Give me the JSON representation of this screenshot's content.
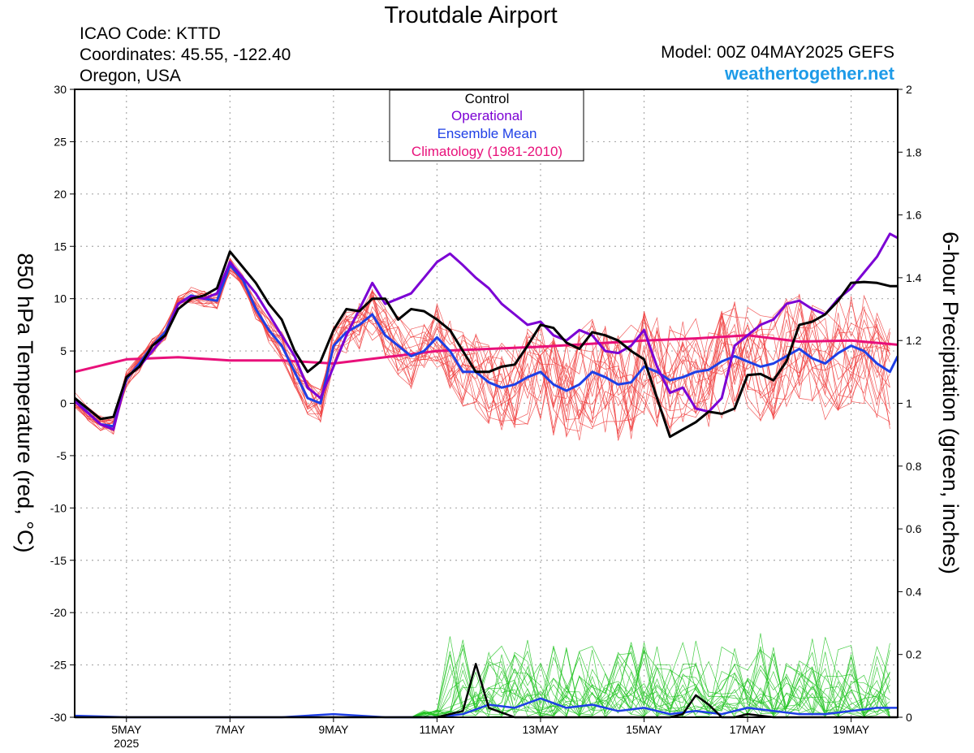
{
  "header": {
    "title": "Troutdale Airport",
    "icao": "ICAO Code: KTTD",
    "coords": "Coordinates: 45.55, -122.40",
    "region": "Oregon, USA",
    "model": "Model: 00Z 04MAY2025 GEFS",
    "site": "weathertogether.net"
  },
  "colors": {
    "control": "#000000",
    "operational": "#7B00D4",
    "mean": "#1E3FE6",
    "climatology": "#E8107A",
    "members_temp": "#F04040",
    "members_precip": "#22C422",
    "site": "#1E9BE8"
  },
  "chart_data": {
    "type": "line",
    "title": "Troutdale Airport",
    "ylabel_left": "850 hPa Temperature (red, °C)",
    "ylabel_right": "6-hour Precipitation (green, inches)",
    "ylim_left": [
      -30,
      30
    ],
    "ylim_right": [
      0,
      2
    ],
    "left_ticks": [
      "30",
      "25",
      "20",
      "15",
      "10",
      "5",
      "0",
      "-5",
      "-10",
      "-15",
      "-20",
      "-25",
      "-30"
    ],
    "right_ticks": [
      "2",
      "1.8",
      "1.6",
      "1.4",
      "1.2",
      "1",
      "0.8",
      "0.6",
      "0.4",
      "0.2",
      "0"
    ],
    "x_unit": "days since 00Z 04MAY2025",
    "xlim": [
      0,
      15.9
    ],
    "x_ticks": [
      {
        "x": 1,
        "label": "5MAY",
        "sub": "2025"
      },
      {
        "x": 3,
        "label": "7MAY",
        "sub": ""
      },
      {
        "x": 5,
        "label": "9MAY",
        "sub": ""
      },
      {
        "x": 7,
        "label": "11MAY",
        "sub": ""
      },
      {
        "x": 9,
        "label": "13MAY",
        "sub": ""
      },
      {
        "x": 11,
        "label": "15MAY",
        "sub": ""
      },
      {
        "x": 13,
        "label": "17MAY",
        "sub": ""
      },
      {
        "x": 15,
        "label": "19MAY",
        "sub": ""
      }
    ],
    "grid": true,
    "legend": [
      "Control",
      "Operational",
      "Ensemble Mean",
      "Climatology (1981-2010)"
    ],
    "legend_position": "top-center",
    "series": [
      {
        "name": "Climatology (1981-2010)",
        "axis": "left",
        "x": [
          0,
          1,
          2,
          3,
          4,
          5,
          6,
          7,
          8,
          9,
          10,
          11,
          12,
          13,
          14,
          15,
          15.9
        ],
        "values": [
          3.0,
          4.2,
          4.4,
          4.1,
          4.1,
          3.8,
          4.4,
          5.0,
          5.2,
          5.4,
          5.7,
          6.0,
          6.2,
          6.5,
          5.9,
          6.0,
          5.6
        ]
      },
      {
        "name": "Control",
        "axis": "left",
        "x": [
          0,
          0.5,
          0.75,
          1,
          1.25,
          1.5,
          1.75,
          2,
          2.25,
          2.5,
          2.75,
          3,
          3.25,
          3.5,
          3.75,
          4,
          4.25,
          4.5,
          4.75,
          5,
          5.25,
          5.5,
          5.75,
          6,
          6.25,
          6.5,
          6.75,
          7,
          7.25,
          7.5,
          7.75,
          8,
          8.25,
          8.5,
          8.75,
          9,
          9.25,
          9.5,
          9.75,
          10,
          10.25,
          10.5,
          10.75,
          11,
          11.25,
          11.5,
          11.75,
          12,
          12.25,
          12.5,
          12.75,
          13,
          13.25,
          13.5,
          13.75,
          14,
          14.25,
          14.5,
          14.75,
          15,
          15.25,
          15.5,
          15.75,
          15.9
        ],
        "values": [
          0.5,
          -1.5,
          -1.3,
          2.5,
          3.5,
          5.5,
          6.5,
          9.0,
          10.0,
          10.3,
          11.0,
          14.5,
          13.0,
          11.5,
          9.5,
          8.0,
          5.0,
          3.0,
          4.0,
          7.0,
          9.0,
          8.8,
          10.0,
          10.0,
          8.0,
          9.0,
          8.8,
          8.0,
          7.0,
          5.0,
          3.0,
          3.0,
          3.5,
          3.7,
          5.5,
          7.5,
          7.2,
          5.8,
          5.2,
          6.8,
          6.5,
          6.0,
          5.0,
          4.2,
          0.5,
          -3.2,
          -2.5,
          -1.8,
          -0.8,
          -1.0,
          -0.5,
          2.7,
          2.8,
          2.2,
          4.0,
          7.5,
          7.8,
          8.5,
          9.8,
          11.5,
          11.6,
          11.5,
          11.2,
          11.2
        ]
      },
      {
        "name": "Operational",
        "axis": "left",
        "x": [
          0,
          0.5,
          0.75,
          1,
          1.25,
          1.5,
          1.75,
          2,
          2.25,
          2.5,
          2.75,
          3,
          3.25,
          3.5,
          3.75,
          4,
          4.25,
          4.5,
          4.75,
          5,
          5.25,
          5.5,
          5.75,
          6,
          6.25,
          6.5,
          6.75,
          7,
          7.25,
          7.5,
          7.75,
          8,
          8.25,
          8.5,
          8.75,
          9,
          9.25,
          9.5,
          9.75,
          10,
          10.25,
          10.5,
          10.75,
          11,
          11.25,
          11.5,
          11.75,
          12,
          12.25,
          12.5,
          12.75,
          13,
          13.25,
          13.5,
          13.75,
          14,
          14.25,
          14.5,
          14.75,
          15,
          15.25,
          15.5,
          15.75,
          15.9
        ],
        "values": [
          0.2,
          -2.0,
          -2.5,
          2.5,
          3.5,
          5.0,
          6.5,
          9.5,
          10.2,
          10.0,
          10.5,
          13.5,
          12.0,
          10.5,
          8.5,
          6.5,
          4.5,
          1.5,
          0.5,
          3.5,
          6.5,
          9.0,
          11.5,
          9.5,
          10.0,
          10.5,
          12.0,
          13.5,
          14.3,
          13.2,
          12.0,
          11.0,
          9.5,
          8.5,
          7.5,
          7.8,
          6.5,
          6.0,
          7.0,
          6.5,
          5.0,
          4.8,
          5.5,
          7.0,
          3.5,
          1.0,
          1.5,
          -0.5,
          -0.8,
          0.5,
          5.5,
          6.5,
          7.5,
          8.0,
          9.5,
          9.8,
          9.0,
          8.5,
          10.0,
          11.0,
          12.5,
          14.0,
          16.2,
          15.8
        ]
      },
      {
        "name": "Ensemble Mean",
        "axis": "left",
        "x": [
          0,
          0.5,
          0.75,
          1,
          1.25,
          1.5,
          1.75,
          2,
          2.25,
          2.5,
          2.75,
          3,
          3.25,
          3.5,
          3.75,
          4,
          4.25,
          4.5,
          4.75,
          5,
          5.25,
          5.5,
          5.75,
          6,
          6.25,
          6.5,
          6.75,
          7,
          7.25,
          7.5,
          7.75,
          8,
          8.25,
          8.5,
          8.75,
          9,
          9.25,
          9.5,
          9.75,
          10,
          10.25,
          10.5,
          10.75,
          11,
          11.25,
          11.5,
          11.75,
          12,
          12.25,
          12.5,
          12.75,
          13,
          13.25,
          13.5,
          13.75,
          14,
          14.25,
          14.5,
          14.75,
          15,
          15.25,
          15.5,
          15.75,
          15.9
        ],
        "values": [
          0.3,
          -2.0,
          -2.2,
          2.3,
          3.8,
          5.5,
          6.8,
          9.5,
          10.3,
          10.0,
          9.8,
          13.2,
          11.8,
          9.0,
          7.0,
          5.5,
          3.0,
          0.5,
          0.0,
          5.5,
          6.8,
          7.5,
          8.5,
          6.5,
          5.5,
          4.5,
          5.0,
          6.3,
          5.0,
          3.0,
          3.0,
          2.0,
          1.5,
          1.8,
          2.5,
          3.0,
          1.8,
          1.2,
          1.8,
          3.0,
          2.5,
          1.8,
          2.0,
          3.5,
          3.0,
          2.2,
          2.5,
          3.0,
          3.2,
          4.0,
          4.5,
          4.0,
          3.5,
          3.8,
          4.5,
          5.2,
          4.3,
          3.8,
          4.8,
          5.5,
          5.0,
          3.8,
          3.0,
          4.5
        ]
      },
      {
        "name": "Control precipitation",
        "axis": "right",
        "x": [
          0,
          1,
          2,
          3,
          4,
          5,
          6,
          7,
          7.5,
          7.75,
          8,
          8.5,
          9,
          9.5,
          10,
          10.5,
          11,
          11.5,
          11.75,
          12,
          12.25,
          12.5,
          12.75,
          13,
          13.5,
          14,
          14.5,
          15,
          15.5,
          15.9
        ],
        "values": [
          0,
          0,
          0,
          0,
          0,
          0,
          0,
          0,
          0.02,
          0.17,
          0.03,
          0,
          0,
          0,
          0,
          0,
          0,
          0,
          0.01,
          0.07,
          0.04,
          0,
          0,
          0.01,
          0,
          0,
          0,
          0,
          0,
          0
        ]
      },
      {
        "name": "Mean precipitation",
        "axis": "right",
        "x": [
          0,
          1,
          2,
          3,
          4,
          5,
          6,
          7,
          7.5,
          8,
          8.5,
          9,
          9.5,
          10,
          10.5,
          11,
          11.5,
          12,
          12.5,
          13,
          13.5,
          14,
          14.5,
          15,
          15.5,
          15.9
        ],
        "values": [
          0.005,
          0,
          0,
          0,
          0,
          0.01,
          0,
          0,
          0.01,
          0.04,
          0.03,
          0.06,
          0.03,
          0.04,
          0.02,
          0.03,
          0.01,
          0.02,
          0.01,
          0.03,
          0.02,
          0.01,
          0.01,
          0.02,
          0.03,
          0.03
        ]
      }
    ]
  }
}
